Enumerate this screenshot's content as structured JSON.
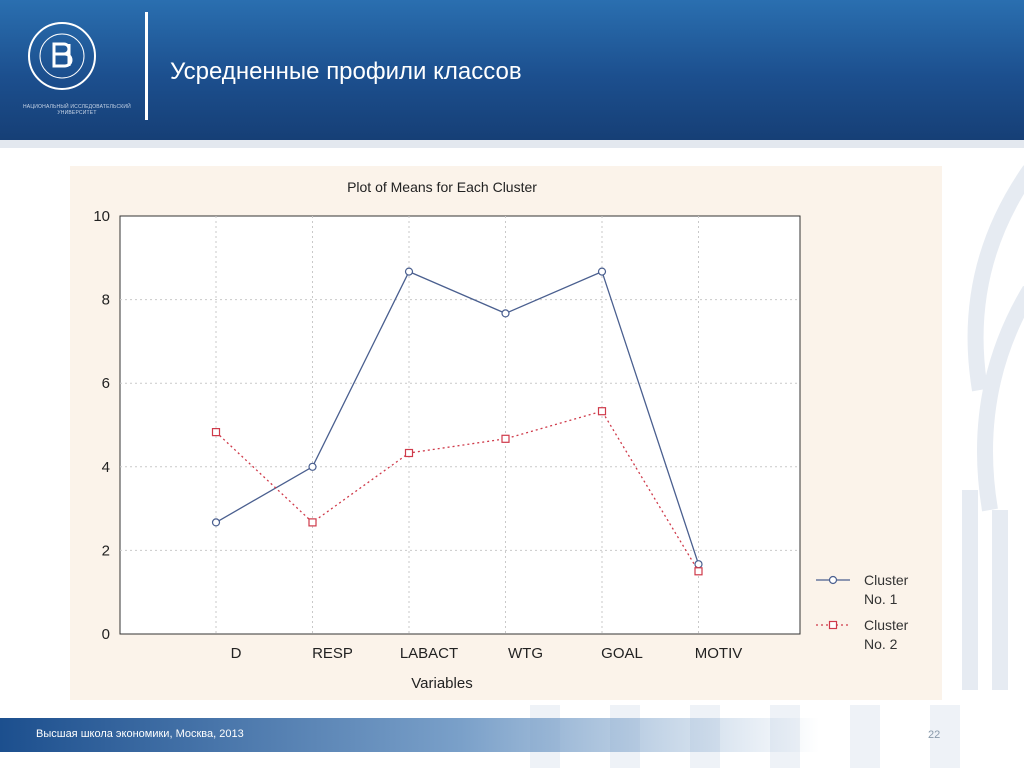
{
  "slide": {
    "title": "Усредненные профили классов",
    "footer": "Высшая школа экономики, Москва, 2013",
    "page_number": "22"
  },
  "logo": {
    "caption": "НАЦИОНАЛЬНЫЙ ИССЛЕДОВАТЕЛЬСКИЙ УНИВЕРСИТЕТ"
  },
  "colors": {
    "header": "#1c4f8e",
    "series1": "#4a5f8f",
    "series2": "#cf3a4a"
  },
  "chart_data": {
    "type": "line",
    "title": "Plot of Means for Each Cluster",
    "xlabel": "Variables",
    "ylabel": "",
    "categories": [
      "D",
      "RESP",
      "LABACT",
      "WTG",
      "GOAL",
      "MOTIV"
    ],
    "ylim": [
      0,
      10
    ],
    "yticks": [
      "0",
      "2",
      "4",
      "6",
      "8",
      "10"
    ],
    "grid": true,
    "legend": "right",
    "series": [
      {
        "name": "Cluster No. 1",
        "legend_lines": [
          "Cluster",
          "No. 1"
        ],
        "values": [
          2.67,
          4.0,
          8.67,
          7.67,
          8.67,
          1.67
        ],
        "marker": "circle",
        "style": "solid"
      },
      {
        "name": "Cluster No. 2",
        "legend_lines": [
          "Cluster",
          "No. 2"
        ],
        "values": [
          4.83,
          2.67,
          4.33,
          4.67,
          5.33,
          1.5
        ],
        "marker": "square",
        "style": "dotted"
      }
    ]
  }
}
